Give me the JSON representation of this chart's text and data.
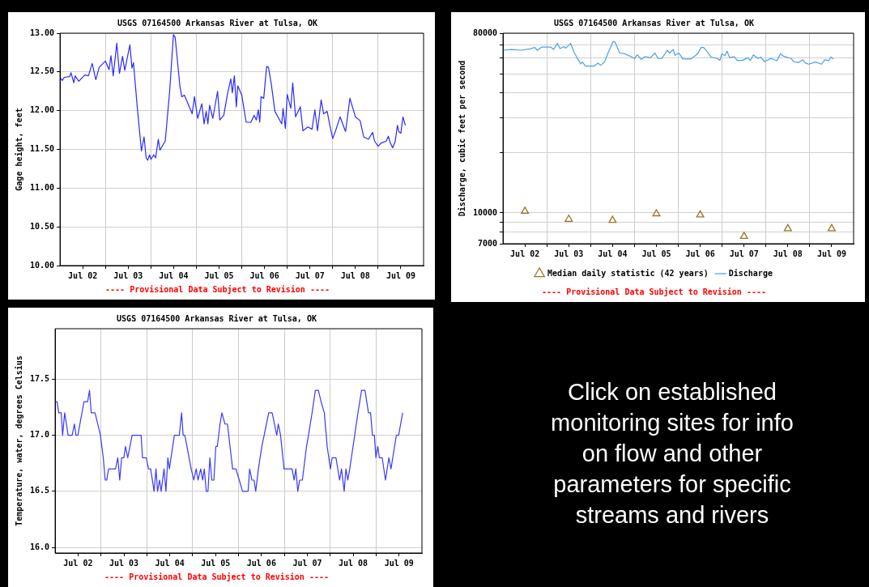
{
  "chart_data": [
    {
      "type": "line",
      "title": "USGS 07164500 Arkansas River at Tulsa, OK",
      "ylabel": "Gage height, feet",
      "annotations": [
        "---- Provisional Data Subject to Revision ----"
      ],
      "xlim": [
        "--07-02",
        "--07-10"
      ],
      "xticks": [
        {
          "value": "--07-02T12:00",
          "label": "Jul 02"
        },
        {
          "value": "--07-03",
          "label": null
        },
        {
          "value": "--07-03T12:00",
          "label": "Jul 03"
        },
        {
          "value": "--07-04",
          "label": null
        },
        {
          "value": "--07-04T12:00",
          "label": "Jul 04"
        },
        {
          "value": "--07-05",
          "label": null
        },
        {
          "value": "--07-05T12:00",
          "label": "Jul 05"
        },
        {
          "value": "--07-06",
          "label": null
        },
        {
          "value": "--07-06T12:00",
          "label": "Jul 06"
        },
        {
          "value": "--07-07",
          "label": null
        },
        {
          "value": "--07-07T12:00",
          "label": "Jul 07"
        },
        {
          "value": "--07-08",
          "label": null
        },
        {
          "value": "--07-08T12:00",
          "label": "Jul 08"
        },
        {
          "value": "--07-09",
          "label": null
        },
        {
          "value": "--07-09T12:00",
          "label": "Jul 09"
        }
      ],
      "ylim": [
        10,
        13
      ],
      "yticks": [
        {
          "value": 10,
          "label": "10.00"
        },
        {
          "value": 10.5,
          "label": "10.50"
        },
        {
          "value": 11,
          "label": "11.00"
        },
        {
          "value": 11.5,
          "label": "11.50"
        },
        {
          "value": 12,
          "label": "12.00"
        },
        {
          "value": 12.5,
          "label": "12.50"
        },
        {
          "value": 13,
          "label": "13.00"
        }
      ],
      "grid": true,
      "series": [
        {
          "color": "#2a2aff",
          "x": [
            "--07-02T00:00",
            "--07-02T01:12",
            "--07-02T02:12",
            "--07-02T05:06",
            "--07-02T05:48",
            "--07-02T07:18",
            "--07-02T08:00",
            "--07-02T09:54",
            "--07-02T13:06",
            "--07-02T15:00",
            "--07-02T17:00",
            "--07-02T18:54",
            "--07-02T20:42",
            "--07-03T00:00",
            "--07-03T01:54",
            "--07-03T02:54",
            "--07-03T04:06",
            "--07-03T06:00",
            "--07-03T07:24",
            "--07-03T09:00",
            "--07-03T10:12",
            "--07-03T12:54",
            "--07-03T14:00",
            "--07-03T14:48",
            "--07-03T16:42",
            "--07-03T19:00",
            "--07-03T20:24",
            "--07-03T21:30",
            "--07-03T22:18",
            "--07-03T23:18",
            "--07-04T00:00",
            "--07-04T01:30",
            "--07-04T02:30",
            "--07-04T03:54",
            "--07-04T04:48",
            "--07-04T07:36",
            "--07-04T09:54",
            "--07-04T11:54",
            "--07-04T12:48",
            "--07-04T15:18",
            "--07-04T16:18",
            "--07-04T17:42",
            "--07-04T21:48",
            "--07-04T23:00",
            "--07-05T00:42",
            "--07-05T02:54",
            "--07-05T04:06",
            "--07-05T05:12",
            "--07-05T06:06",
            "--07-05T07:00",
            "--07-05T08:42",
            "--07-05T11:12",
            "--07-05T12:24",
            "--07-05T14:30",
            "--07-05T16:24",
            "--07-05T18:12",
            "--07-05T19:00",
            "--07-05T20:06",
            "--07-05T21:06",
            "--07-05T21:54",
            "--07-06T00:00",
            "--07-06T02:18",
            "--07-06T04:48",
            "--07-06T06:30",
            "--07-06T07:42",
            "--07-06T08:42",
            "--07-06T09:30",
            "--07-06T10:12",
            "--07-06T11:36",
            "--07-06T13:06",
            "--07-06T14:06",
            "--07-06T15:36",
            "--07-06T17:30",
            "--07-06T21:06",
            "--07-06T21:48",
            "--07-06T23:00",
            "--07-07T00:00",
            "--07-07T01:54",
            "--07-07T02:54",
            "--07-07T04:24",
            "--07-07T06:54",
            "--07-07T08:18",
            "--07-07T10:54",
            "--07-07T13:06",
            "--07-07T14:36",
            "--07-07T16:00",
            "--07-07T17:54",
            "--07-07T19:12",
            "--07-07T21:06",
            "--07-07T22:30",
            "--07-08T00:00",
            "--07-08T01:24",
            "--07-08T03:54",
            "--07-08T06:48",
            "--07-08T09:06",
            "--07-08T12:00",
            "--07-08T14:30",
            "--07-08T16:24",
            "--07-08T18:54",
            "--07-08T21:06",
            "--07-08T22:06",
            "--07-09T00:00",
            "--07-09T01:30",
            "--07-09T04:24",
            "--07-09T05:24",
            "--07-09T06:30",
            "--07-09T07:42",
            "--07-09T09:00",
            "--07-09T10:12",
            "--07-09T10:54",
            "--07-09T12:00",
            "--07-09T13:06",
            "--07-09T14:24"
          ],
          "values": [
            12.43,
            12.39,
            12.43,
            12.44,
            12.49,
            12.36,
            12.45,
            12.38,
            12.46,
            12.45,
            12.61,
            12.4,
            12.56,
            12.64,
            12.53,
            12.71,
            12.45,
            12.87,
            12.48,
            12.7,
            12.52,
            12.85,
            12.55,
            12.62,
            12.07,
            11.48,
            11.66,
            11.39,
            11.36,
            11.43,
            11.37,
            11.43,
            11.39,
            11.63,
            11.49,
            11.61,
            12.25,
            12.98,
            12.95,
            12.32,
            12.18,
            12.2,
            11.96,
            12.18,
            11.9,
            12.09,
            11.83,
            11.99,
            11.83,
            12.07,
            11.9,
            12.25,
            11.88,
            11.94,
            12.21,
            12.41,
            12.23,
            12.45,
            12.05,
            12.32,
            12.2,
            11.85,
            11.85,
            11.94,
            11.88,
            12.01,
            11.85,
            12.18,
            12.16,
            12.57,
            12.56,
            12.34,
            11.99,
            11.83,
            12.03,
            11.77,
            12.21,
            12.03,
            12.36,
            11.92,
            12.05,
            11.74,
            11.79,
            11.76,
            12.01,
            11.74,
            12.14,
            11.96,
            11.99,
            11.81,
            11.64,
            11.73,
            11.92,
            11.73,
            12.16,
            11.92,
            11.87,
            11.66,
            11.63,
            11.72,
            11.61,
            11.54,
            11.58,
            11.61,
            11.67,
            11.58,
            11.52,
            11.6,
            11.81,
            11.73,
            11.71,
            11.92,
            11.81
          ]
        }
      ]
    },
    {
      "type": "line",
      "title": "USGS 07164500 Arkansas River at Tulsa, OK",
      "ylabel": "Discharge, cubic feet per second",
      "annotations": [
        "---- Provisional Data Subject to Revision ----"
      ],
      "log": "y",
      "legend": "bottom",
      "xlim": [
        "--07-02",
        "--07-10"
      ],
      "xticks": [
        {
          "value": "--07-02T12:00",
          "label": "Jul 02"
        },
        {
          "value": "--07-03",
          "label": null
        },
        {
          "value": "--07-03T12:00",
          "label": "Jul 03"
        },
        {
          "value": "--07-04",
          "label": null
        },
        {
          "value": "--07-04T12:00",
          "label": "Jul 04"
        },
        {
          "value": "--07-05",
          "label": null
        },
        {
          "value": "--07-05T12:00",
          "label": "Jul 05"
        },
        {
          "value": "--07-06",
          "label": null
        },
        {
          "value": "--07-06T12:00",
          "label": "Jul 06"
        },
        {
          "value": "--07-07",
          "label": null
        },
        {
          "value": "--07-07T12:00",
          "label": "Jul 07"
        },
        {
          "value": "--07-08",
          "label": null
        },
        {
          "value": "--07-08T12:00",
          "label": "Jul 08"
        },
        {
          "value": "--07-09",
          "label": null
        },
        {
          "value": "--07-09T12:00",
          "label": "Jul 09"
        }
      ],
      "ylim": [
        7000,
        80000
      ],
      "yticks": [
        7000,
        {
          "value": 8000,
          "label": null
        },
        {
          "value": 9000,
          "label": null
        },
        10000,
        {
          "value": 20000,
          "label": null
        },
        {
          "value": 30000,
          "label": null
        },
        {
          "value": 40000,
          "label": null
        },
        {
          "value": 50000,
          "label": null
        },
        {
          "value": 60000,
          "label": null
        },
        {
          "value": 70000,
          "label": null
        },
        80000
      ],
      "grid": true,
      "series": [
        {
          "name": "Median daily statistic (42 years)",
          "type": "scatter",
          "marker": "triangle",
          "color": "#9c7424",
          "x": [
            "--07-02T12:00",
            "--07-03T12:00",
            "--07-04T12:00",
            "--07-05T12:00",
            "--07-06T12:00",
            "--07-07T12:00",
            "--07-08T12:00",
            "--07-09T12:00"
          ],
          "values": [
            10200,
            9290,
            9180,
            9900,
            9780,
            7630,
            8340,
            8340
          ]
        },
        {
          "name": "Discharge",
          "type": "line",
          "color": "#4aa0e0",
          "x": [
            "--07-02T00:00",
            "--07-02T04:42",
            "--07-02T09:42",
            "--07-02T14:48",
            "--07-02T17:18",
            "--07-02T18:48",
            "--07-02T21:12",
            "--07-03T02:12",
            "--07-03T03:42",
            "--07-03T05:48",
            "--07-03T07:12",
            "--07-03T09:24",
            "--07-03T10:24",
            "--07-03T13:00",
            "--07-03T15:06",
            "--07-03T18:30",
            "--07-03T19:24",
            "--07-03T21:12",
            "--07-04T01:54",
            "--07-04T04:00",
            "--07-04T05:30",
            "--07-04T07:36",
            "--07-04T09:30",
            "--07-04T12:18",
            "--07-04T13:18",
            "--07-04T15:54",
            "--07-04T18:18",
            "--07-04T21:54",
            "--07-05T00:06",
            "--07-05T01:30",
            "--07-05T03:42",
            "--07-05T05:48",
            "--07-05T08:42",
            "--07-05T11:12",
            "--07-05T12:54",
            "--07-05T15:00",
            "--07-05T17:54",
            "--07-05T19:18",
            "--07-05T21:12",
            "--07-05T22:12",
            "--07-06T00:18",
            "--07-06T02:30",
            "--07-06T06:36",
            "--07-06T09:24",
            "--07-06T10:48",
            "--07-06T12:30",
            "--07-06T13:54",
            "--07-06T15:48",
            "--07-06T17:54",
            "--07-06T21:18",
            "--07-06T22:48",
            "--07-06T23:48",
            "--07-07T01:36",
            "--07-07T02:42",
            "--07-07T04:06",
            "--07-07T06:30",
            "--07-07T08:18",
            "--07-07T11:00",
            "--07-07T14:00",
            "--07-07T15:30",
            "--07-07T17:06",
            "--07-07T19:36",
            "--07-07T21:06",
            "--07-07T23:12",
            "--07-08T00:30",
            "--07-08T02:42",
            "--07-08T06:06",
            "--07-08T07:54",
            "--07-08T09:36",
            "--07-08T13:48",
            "--07-08T15:12",
            "--07-08T18:00",
            "--07-08T20:12",
            "--07-08T21:36",
            "--07-08T23:24",
            "--07-09T03:12",
            "--07-09T06:30",
            "--07-09T08:12",
            "--07-09T10:18",
            "--07-09T11:42",
            "--07-09T13:00"
          ],
          "values": [
            65700,
            66300,
            65700,
            66700,
            67900,
            65700,
            68100,
            68100,
            66300,
            71100,
            67000,
            68500,
            67300,
            71100,
            63600,
            56100,
            57300,
            54700,
            54700,
            56600,
            55200,
            57300,
            63600,
            72700,
            72300,
            63600,
            63200,
            61100,
            59700,
            62300,
            59100,
            61100,
            60200,
            63600,
            59700,
            59700,
            65700,
            63600,
            66300,
            62000,
            63600,
            59300,
            59300,
            61700,
            63600,
            67800,
            67800,
            64600,
            60700,
            59700,
            58400,
            63000,
            61700,
            65100,
            60200,
            61100,
            58400,
            58400,
            60200,
            58400,
            62300,
            59700,
            60700,
            57500,
            58400,
            59700,
            58200,
            63000,
            61300,
            59700,
            57500,
            57000,
            58800,
            56600,
            55900,
            57300,
            55900,
            58800,
            58200,
            60700,
            59200
          ]
        }
      ]
    },
    {
      "type": "line",
      "title": "USGS 07164500 Arkansas River at Tulsa, OK",
      "ylabel": "Temperature, water, degrees Celsius",
      "annotations": [
        "---- Provisional Data Subject to Revision ----"
      ],
      "xlim": [
        "--07-02",
        "--07-10"
      ],
      "xticks": [
        {
          "value": "--07-02T12:00",
          "label": "Jul 02"
        },
        {
          "value": "--07-03",
          "label": null
        },
        {
          "value": "--07-03T12:00",
          "label": "Jul 03"
        },
        {
          "value": "--07-04",
          "label": null
        },
        {
          "value": "--07-04T12:00",
          "label": "Jul 04"
        },
        {
          "value": "--07-05",
          "label": null
        },
        {
          "value": "--07-05T12:00",
          "label": "Jul 05"
        },
        {
          "value": "--07-06",
          "label": null
        },
        {
          "value": "--07-06T12:00",
          "label": "Jul 06"
        },
        {
          "value": "--07-07",
          "label": null
        },
        {
          "value": "--07-07T12:00",
          "label": "Jul 07"
        },
        {
          "value": "--07-08",
          "label": null
        },
        {
          "value": "--07-08T12:00",
          "label": "Jul 08"
        },
        {
          "value": "--07-09",
          "label": null
        },
        {
          "value": "--07-09T12:00",
          "label": "Jul 09"
        }
      ],
      "ylim": [
        15.95,
        17.95
      ],
      "yticks": [
        {
          "value": 16,
          "label": "16.0"
        },
        16.5,
        {
          "value": 17,
          "label": "17.0"
        },
        17.5
      ],
      "grid": true,
      "series": [
        {
          "color": "#3a3aff",
          "x": [
            "--07-02T00:00",
            "--07-02T01:00",
            "--07-02T01:54",
            "--07-02T03:12",
            "--07-02T03:54",
            "--07-02T05:00",
            "--07-02T06:48",
            "--07-02T08:54",
            "--07-02T10:06",
            "--07-02T10:54",
            "--07-02T11:54",
            "--07-02T15:06",
            "--07-02T17:00",
            "--07-02T18:00",
            "--07-02T18:54",
            "--07-02T20:54",
            "--07-02T22:18",
            "--07-02T23:42",
            "--07-03T01:12",
            "--07-03T02:12",
            "--07-03T03:00",
            "--07-03T04:00",
            "--07-03T07:36",
            "--07-03T08:48",
            "--07-03T09:48",
            "--07-03T10:48",
            "--07-03T12:00",
            "--07-03T12:48",
            "--07-03T14:00",
            "--07-03T16:18",
            "--07-03T21:00",
            "--07-03T21:42",
            "--07-03T23:42",
            "--07-04T00:54",
            "--07-04T02:00",
            "--07-04T03:48",
            "--07-04T04:48",
            "--07-04T05:36",
            "--07-04T06:42",
            "--07-04T07:30",
            "--07-04T09:00",
            "--07-04T10:00",
            "--07-04T11:00",
            "--07-04T11:48",
            "--07-04T14:24",
            "--07-04T17:00",
            "--07-04T18:12",
            "--07-04T19:00",
            "--07-04T19:54",
            "--07-04T23:12",
            "--07-05T00:36",
            "--07-05T01:48",
            "--07-05T02:48",
            "--07-05T04:12",
            "--07-05T05:12",
            "--07-05T06:06",
            "--07-05T07:06",
            "--07-05T08:00",
            "--07-05T09:00",
            "--07-05T10:00",
            "--07-05T11:06",
            "--07-05T12:06",
            "--07-05T12:54",
            "--07-05T14:18",
            "--07-05T15:18",
            "--07-05T16:54",
            "--07-05T18:12",
            "--07-05T20:54",
            "--07-05T22:36",
            "--07-06T00:24",
            "--07-06T02:06",
            "--07-06T05:00",
            "--07-06T05:48",
            "--07-06T07:00",
            "--07-06T08:06",
            "--07-06T09:00",
            "--07-06T10:24",
            "--07-06T12:12",
            "--07-06T15:48",
            "--07-06T17:36",
            "--07-06T20:00",
            "--07-06T20:48",
            "--07-06T22:00",
            "--07-06T23:48",
            "--07-07T04:00",
            "--07-07T05:06",
            "--07-07T06:00",
            "--07-07T07:00",
            "--07-07T08:00",
            "--07-07T09:24",
            "--07-07T11:36",
            "--07-07T12:36",
            "--07-07T14:30",
            "--07-07T16:12",
            "--07-07T17:48",
            "--07-07T19:12",
            "--07-07T20:54",
            "--07-07T22:24",
            "--07-08T00:06",
            "--07-08T01:00",
            "--07-08T03:00",
            "--07-08T04:54",
            "--07-08T05:54",
            "--07-08T07:18",
            "--07-08T08:12",
            "--07-08T09:12",
            "--07-08T10:12",
            "--07-08T12:48",
            "--07-08T14:30",
            "--07-08T16:24",
            "--07-08T18:12",
            "--07-08T20:00",
            "--07-08T21:06",
            "--07-08T22:06",
            "--07-08T23:06",
            "--07-08T23:54",
            "--07-09T00:54",
            "--07-09T01:42",
            "--07-09T03:12",
            "--07-09T04:54",
            "--07-09T06:42",
            "--07-09T07:48",
            "--07-09T10:36",
            "--07-09T11:48",
            "--07-09T13:54"
          ],
          "values": [
            17.3,
            17.3,
            17.2,
            17.2,
            17,
            17.2,
            17,
            17,
            17.1,
            17,
            17,
            17.3,
            17.3,
            17.4,
            17.2,
            17.2,
            17.1,
            17,
            16.8,
            16.6,
            16.6,
            16.7,
            16.7,
            16.8,
            16.6,
            16.8,
            16.8,
            16.9,
            16.8,
            17,
            17,
            16.8,
            16.8,
            16.7,
            16.7,
            16.5,
            16.7,
            16.5,
            16.6,
            16.5,
            16.7,
            16.5,
            16.8,
            16.7,
            17,
            17,
            17.2,
            17,
            17,
            16.7,
            16.6,
            16.7,
            16.6,
            16.7,
            16.6,
            16.7,
            16.5,
            16.5,
            16.8,
            16.6,
            16.6,
            16.9,
            16.9,
            17.1,
            17.2,
            17.1,
            17.1,
            16.7,
            16.7,
            16.6,
            16.5,
            16.5,
            16.7,
            16.6,
            16.6,
            16.5,
            16.7,
            16.9,
            17.2,
            17.2,
            17,
            17.1,
            17,
            16.7,
            16.7,
            16.6,
            16.7,
            16.5,
            16.6,
            16.6,
            16.9,
            17,
            17.2,
            17.4,
            17.4,
            17.3,
            17.2,
            16.9,
            16.7,
            16.8,
            16.8,
            16.6,
            16.7,
            16.5,
            16.7,
            16.6,
            16.7,
            17,
            17.2,
            17.4,
            17.4,
            17.2,
            17.2,
            17,
            17,
            16.8,
            16.9,
            16.8,
            16.8,
            16.6,
            16.8,
            16.7,
            17,
            17,
            17.2
          ]
        }
      ]
    },
    {
      "type": "other",
      "annotations": [
        "Click on established monitoring sites for info on flow and other parameters for specific streams and rivers"
      ]
    }
  ]
}
